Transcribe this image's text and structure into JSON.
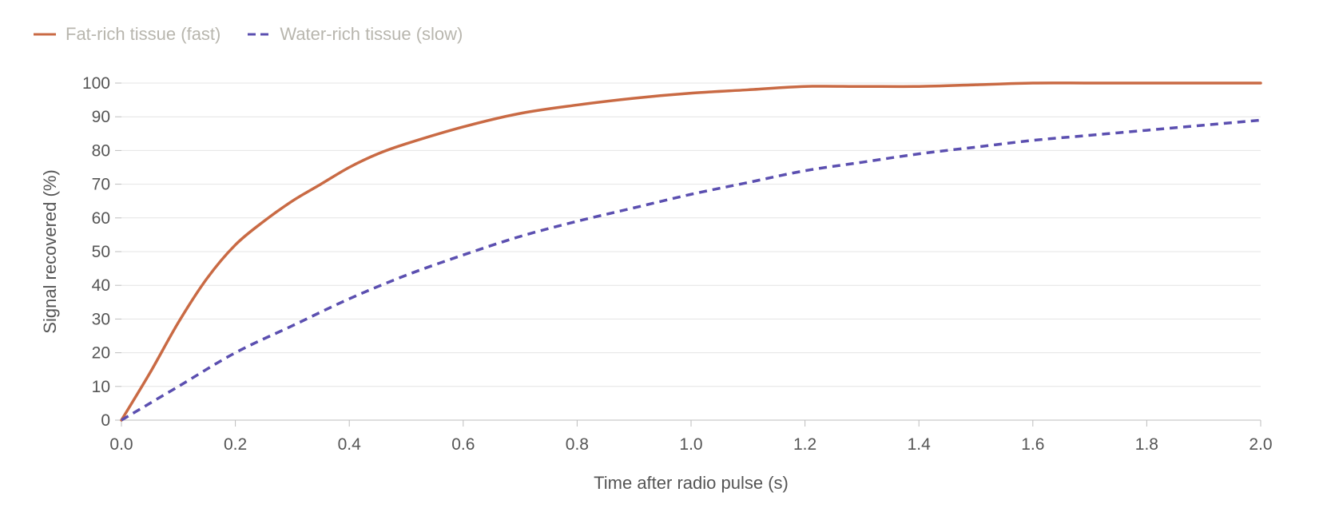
{
  "chart_data": {
    "type": "line",
    "title": "",
    "xlabel": "Time after radio pulse (s)",
    "ylabel": "Signal recovered (%)",
    "xlim": [
      0,
      2
    ],
    "ylim": [
      0,
      100
    ],
    "x_ticks": [
      "0.0",
      "0.2",
      "0.4",
      "0.6",
      "0.8",
      "1.0",
      "1.2",
      "1.4",
      "1.6",
      "1.8",
      "2.0"
    ],
    "y_ticks": [
      "0",
      "10",
      "20",
      "30",
      "40",
      "50",
      "60",
      "70",
      "80",
      "90",
      "100"
    ],
    "grid": "horizontal",
    "legend_position": "top-left",
    "series": [
      {
        "name": "Fat-rich tissue (fast)",
        "color": "#c96a44",
        "style": "solid",
        "x": [
          0,
          0.05,
          0.1,
          0.15,
          0.2,
          0.25,
          0.3,
          0.35,
          0.4,
          0.45,
          0.5,
          0.6,
          0.7,
          0.8,
          0.9,
          1.0,
          1.1,
          1.2,
          1.3,
          1.4,
          1.5,
          1.6,
          1.7,
          1.8,
          1.9,
          2.0
        ],
        "values": [
          0,
          14,
          29,
          42,
          52,
          59,
          65,
          70,
          75,
          79,
          82,
          87,
          91,
          93.5,
          95.5,
          97,
          98,
          99,
          99,
          99,
          99.5,
          100,
          100,
          100,
          100,
          100
        ]
      },
      {
        "name": "Water-rich tissue (slow)",
        "color": "#5b4fb0",
        "style": "dashed",
        "x": [
          0,
          0.1,
          0.2,
          0.3,
          0.4,
          0.5,
          0.6,
          0.7,
          0.8,
          0.9,
          1.0,
          1.1,
          1.2,
          1.3,
          1.4,
          1.5,
          1.6,
          1.7,
          1.8,
          1.9,
          2.0
        ],
        "values": [
          0,
          10,
          20,
          28,
          36,
          43,
          49,
          54.5,
          59,
          63,
          67,
          70.5,
          74,
          76.5,
          79,
          81,
          83,
          84.5,
          86,
          87.5,
          89
        ]
      }
    ]
  }
}
